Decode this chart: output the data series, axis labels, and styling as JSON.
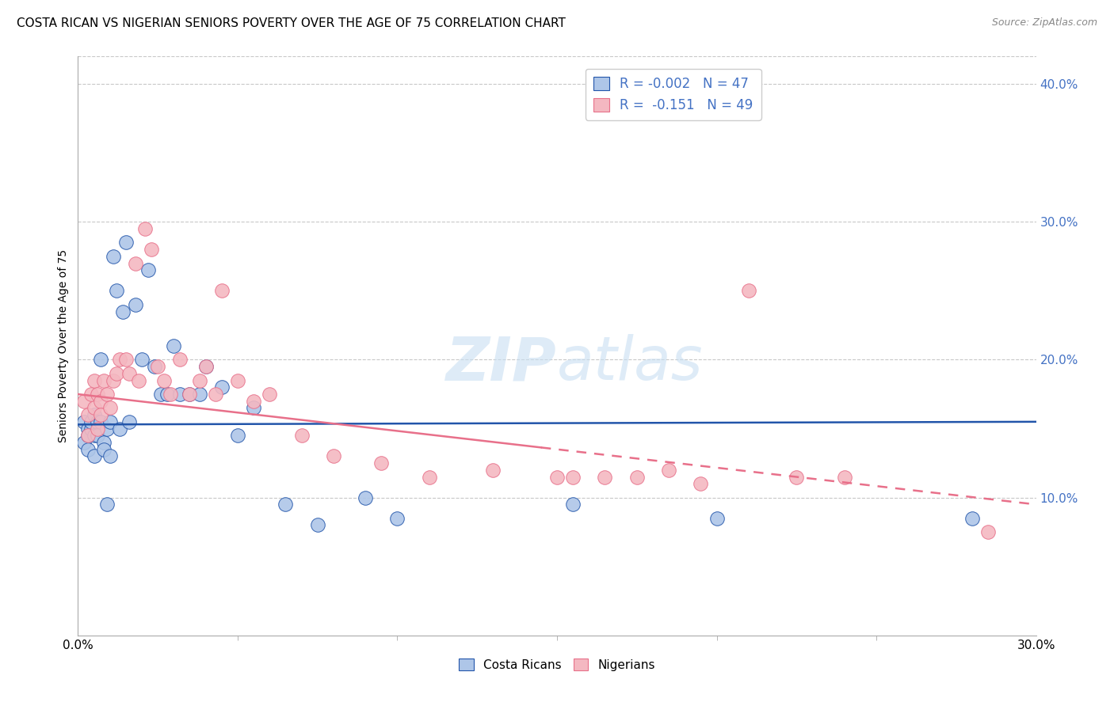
{
  "title": "COSTA RICAN VS NIGERIAN SENIORS POVERTY OVER THE AGE OF 75 CORRELATION CHART",
  "source": "Source: ZipAtlas.com",
  "ylabel": "Seniors Poverty Over the Age of 75",
  "xlim": [
    0.0,
    0.3
  ],
  "ylim": [
    0.0,
    0.42
  ],
  "xticks": [
    0.0,
    0.3
  ],
  "yticks_right": [
    0.1,
    0.2,
    0.3,
    0.4
  ],
  "background_color": "#ffffff",
  "grid_color": "#c8c8c8",
  "costa_rica_color": "#aec6e8",
  "nigeria_color": "#f4b8c1",
  "trend_cr_color": "#2255aa",
  "trend_ng_color": "#e8708a",
  "R_cr": -0.002,
  "N_cr": 47,
  "R_ng": -0.151,
  "N_ng": 49,
  "costa_rica_x": [
    0.002,
    0.002,
    0.003,
    0.003,
    0.003,
    0.004,
    0.004,
    0.005,
    0.005,
    0.005,
    0.006,
    0.006,
    0.007,
    0.007,
    0.008,
    0.008,
    0.009,
    0.009,
    0.01,
    0.01,
    0.011,
    0.012,
    0.013,
    0.014,
    0.015,
    0.016,
    0.018,
    0.02,
    0.022,
    0.024,
    0.026,
    0.028,
    0.03,
    0.032,
    0.035,
    0.038,
    0.04,
    0.045,
    0.05,
    0.055,
    0.065,
    0.075,
    0.09,
    0.1,
    0.155,
    0.2,
    0.28
  ],
  "costa_rica_y": [
    0.155,
    0.14,
    0.15,
    0.145,
    0.135,
    0.15,
    0.155,
    0.16,
    0.145,
    0.13,
    0.155,
    0.145,
    0.2,
    0.155,
    0.14,
    0.135,
    0.15,
    0.095,
    0.155,
    0.13,
    0.275,
    0.25,
    0.15,
    0.235,
    0.285,
    0.155,
    0.24,
    0.2,
    0.265,
    0.195,
    0.175,
    0.175,
    0.21,
    0.175,
    0.175,
    0.175,
    0.195,
    0.18,
    0.145,
    0.165,
    0.095,
    0.08,
    0.1,
    0.085,
    0.095,
    0.085,
    0.085
  ],
  "nigeria_x": [
    0.002,
    0.003,
    0.003,
    0.004,
    0.005,
    0.005,
    0.006,
    0.006,
    0.007,
    0.007,
    0.008,
    0.009,
    0.01,
    0.011,
    0.012,
    0.013,
    0.015,
    0.016,
    0.018,
    0.019,
    0.021,
    0.023,
    0.025,
    0.027,
    0.029,
    0.032,
    0.035,
    0.038,
    0.04,
    0.043,
    0.045,
    0.05,
    0.055,
    0.06,
    0.07,
    0.08,
    0.095,
    0.11,
    0.13,
    0.15,
    0.155,
    0.165,
    0.175,
    0.185,
    0.195,
    0.21,
    0.225,
    0.24,
    0.285
  ],
  "nigeria_y": [
    0.17,
    0.16,
    0.145,
    0.175,
    0.185,
    0.165,
    0.175,
    0.15,
    0.17,
    0.16,
    0.185,
    0.175,
    0.165,
    0.185,
    0.19,
    0.2,
    0.2,
    0.19,
    0.27,
    0.185,
    0.295,
    0.28,
    0.195,
    0.185,
    0.175,
    0.2,
    0.175,
    0.185,
    0.195,
    0.175,
    0.25,
    0.185,
    0.17,
    0.175,
    0.145,
    0.13,
    0.125,
    0.115,
    0.12,
    0.115,
    0.115,
    0.115,
    0.115,
    0.12,
    0.11,
    0.25,
    0.115,
    0.115,
    0.075
  ],
  "watermark_zip_color": "#c5d8ee",
  "watermark_atlas_color": "#c5d8ee"
}
